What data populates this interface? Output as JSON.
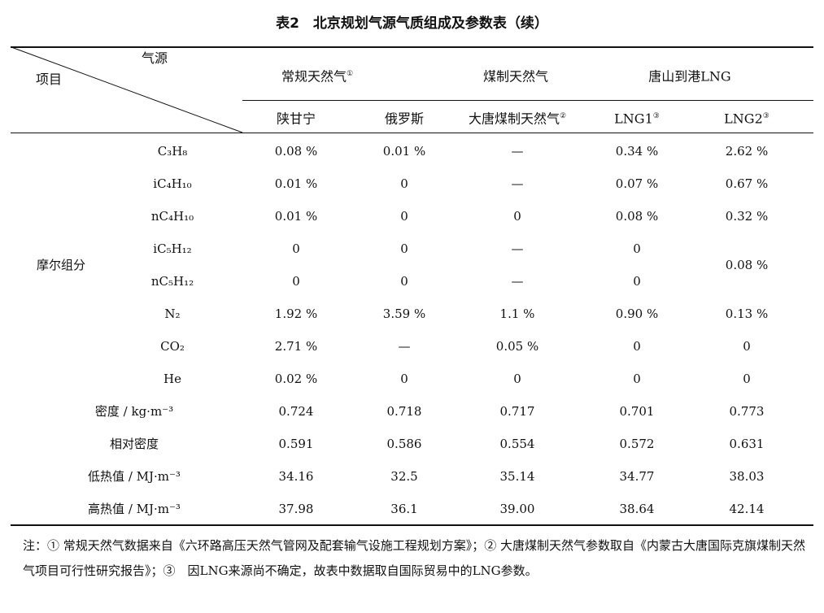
{
  "title": "表2　北京规划气源气质组成及参数表（续）",
  "header": {
    "corner_top": "气源",
    "corner_bottom": "项目",
    "groups": [
      {
        "label": "常规天然气",
        "mark": "①"
      },
      {
        "label": "煤制天然气",
        "mark": ""
      },
      {
        "label": "唐山到港LNG",
        "mark": ""
      }
    ],
    "columns": [
      {
        "label": "陕甘宁",
        "mark": ""
      },
      {
        "label": "俄罗斯",
        "mark": ""
      },
      {
        "label": "大唐煤制天然气",
        "mark": "②"
      },
      {
        "label": "LNG1",
        "mark": "③"
      },
      {
        "label": "LNG2",
        "mark": "③"
      }
    ]
  },
  "group_label": "摩尔组分",
  "rows": [
    {
      "label": "C₃H₈",
      "values": [
        "0.08 %",
        "0.01 %",
        "—",
        "0.34 %",
        "2.62 %"
      ]
    },
    {
      "label": "iC₄H₁₀",
      "values": [
        "0.01 %",
        "0",
        "—",
        "0.07 %",
        "0.67 %"
      ]
    },
    {
      "label": "nC₄H₁₀",
      "values": [
        "0.01 %",
        "0",
        "0",
        "0.08 %",
        "0.32 %"
      ]
    },
    {
      "label": "iC₅H₁₂",
      "values": [
        "0",
        "0",
        "—",
        "0",
        ""
      ]
    },
    {
      "label": "nC₅H₁₂",
      "values": [
        "0",
        "0",
        "—",
        "0",
        ""
      ]
    },
    {
      "label": "N₂",
      "values": [
        "1.92 %",
        "3.59 %",
        "1.1 %",
        "0.90 %",
        "0.13 %"
      ]
    },
    {
      "label": "CO₂",
      "values": [
        "2.71 %",
        "—",
        "0.05 %",
        "0",
        "0"
      ]
    },
    {
      "label": "He",
      "values": [
        "0.02 %",
        "0",
        "0",
        "0",
        "0"
      ]
    },
    {
      "label": "密度 / kg·m⁻³",
      "values": [
        "0.724",
        "0.718",
        "0.717",
        "0.701",
        "0.773"
      ]
    },
    {
      "label": "相对密度",
      "values": [
        "0.591",
        "0.586",
        "0.554",
        "0.572",
        "0.631"
      ]
    },
    {
      "label": "低热值 / MJ·m⁻³",
      "values": [
        "34.16",
        "32.5",
        "35.14",
        "34.77",
        "38.03"
      ]
    },
    {
      "label": "高热值 / MJ·m⁻³",
      "values": [
        "37.98",
        "36.1",
        "39.00",
        "38.64",
        "42.14"
      ]
    }
  ],
  "merged_lng2_c5": "0.08 %",
  "note": "注：① 常规天然气数据来自《六环路高压天然气管网及配套输气设施工程规划方案》；② 大唐煤制天然气参数取自《内蒙古大唐国际克旗煤制天然气项目可行性研究报告》；③　因LNG来源尚不确定，故表中数据取自国际贸易中的LNG参数。"
}
